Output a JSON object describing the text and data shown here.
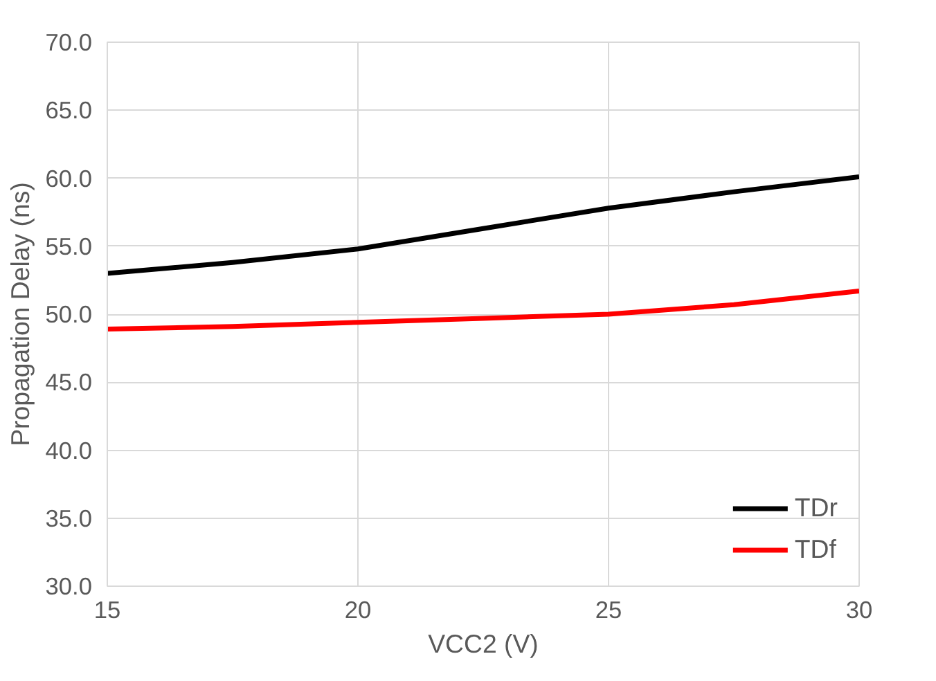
{
  "chart_data": {
    "type": "line",
    "xlabel": "VCC2 (V)",
    "ylabel": "Propagation Delay (ns)",
    "x": [
      15,
      17.5,
      20,
      22.5,
      25,
      27.5,
      30
    ],
    "series": [
      {
        "name": "TDr",
        "color": "#000000",
        "values": [
          53.0,
          53.8,
          54.8,
          56.3,
          57.8,
          59.0,
          60.1
        ]
      },
      {
        "name": "TDf",
        "color": "#ff0000",
        "values": [
          48.9,
          49.1,
          49.4,
          49.7,
          50.0,
          50.7,
          51.7
        ]
      }
    ],
    "xlim": [
      15,
      30
    ],
    "xticks": [
      15,
      20,
      25,
      30
    ],
    "ylim": [
      30,
      70
    ],
    "yticks": [
      {
        "value": 30,
        "label": "30.0"
      },
      {
        "value": 35,
        "label": "35.0"
      },
      {
        "value": 40,
        "label": "40.0"
      },
      {
        "value": 45,
        "label": "45.0"
      },
      {
        "value": 50,
        "label": "50.0"
      },
      {
        "value": 55,
        "label": "55.0"
      },
      {
        "value": 60,
        "label": "60.0"
      },
      {
        "value": 65,
        "label": "65.0"
      },
      {
        "value": 70,
        "label": "70.0"
      }
    ],
    "grid": true,
    "legend": "bottom right",
    "marker": "none",
    "line_style": "solid"
  }
}
